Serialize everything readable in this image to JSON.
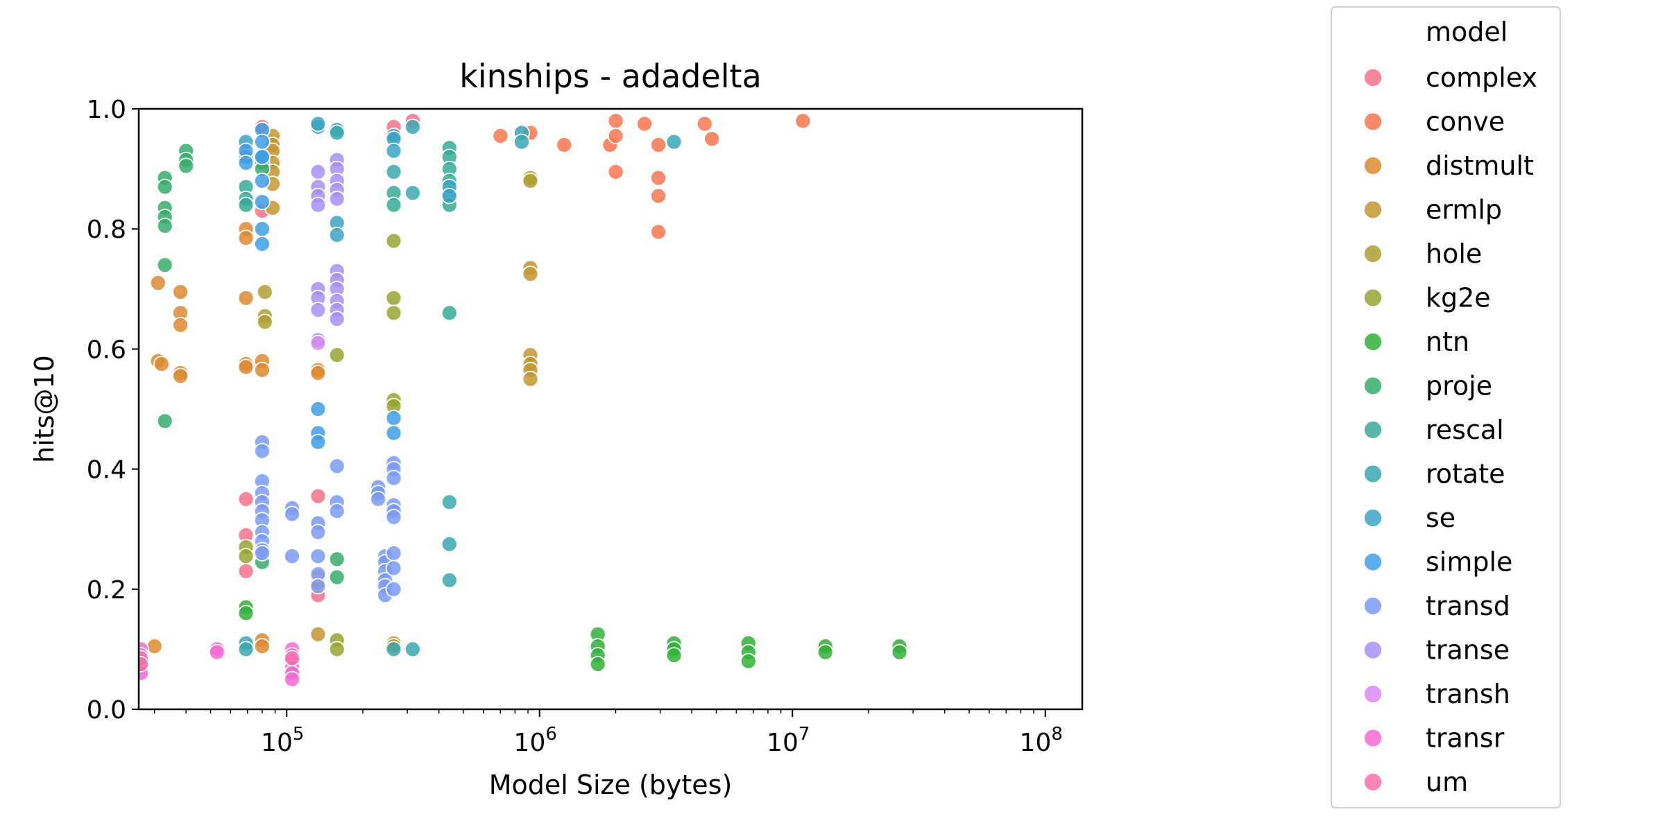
{
  "chart_data": {
    "type": "scatter",
    "title": "kinships - adadelta",
    "xlabel": "Model Size (bytes)",
    "ylabel": "hits@10",
    "x_scale": "log",
    "xlim": [
      26000,
      140000000
    ],
    "ylim": [
      0.0,
      1.0
    ],
    "x_ticks": [
      {
        "value": 100000,
        "base": "10",
        "exp": "5"
      },
      {
        "value": 1000000,
        "base": "10",
        "exp": "6"
      },
      {
        "value": 10000000,
        "base": "10",
        "exp": "7"
      },
      {
        "value": 100000000,
        "base": "10",
        "exp": "8"
      }
    ],
    "y_ticks": [
      "0.0",
      "0.2",
      "0.4",
      "0.6",
      "0.8",
      "1.0"
    ],
    "grid": false,
    "legend": {
      "title": "model",
      "placement": "outside right"
    },
    "series": [
      {
        "name": "complex",
        "color": "#f77189",
        "points": [
          [
            80000,
            0.97
          ],
          [
            80000,
            0.83
          ],
          [
            69000,
            0.35
          ],
          [
            69000,
            0.29
          ],
          [
            69000,
            0.23
          ],
          [
            133000,
            0.355
          ],
          [
            133000,
            0.19
          ],
          [
            265000,
            0.97
          ],
          [
            315000,
            0.98
          ]
        ]
      },
      {
        "name": "conve",
        "color": "#f7754f",
        "points": [
          [
            700000,
            0.955
          ],
          [
            920000,
            0.96
          ],
          [
            1250000,
            0.94
          ],
          [
            1900000,
            0.94
          ],
          [
            2000000,
            0.98
          ],
          [
            2000000,
            0.955
          ],
          [
            2000000,
            0.895
          ],
          [
            2600000,
            0.975
          ],
          [
            2950000,
            0.94
          ],
          [
            2950000,
            0.885
          ],
          [
            2950000,
            0.855
          ],
          [
            2950000,
            0.795
          ],
          [
            4500000,
            0.975
          ],
          [
            4800000,
            0.95
          ],
          [
            11000000,
            0.98
          ]
        ]
      },
      {
        "name": "distmult",
        "color": "#dc8932",
        "points": [
          [
            30000,
            0.105
          ],
          [
            31000,
            0.71
          ],
          [
            31000,
            0.58
          ],
          [
            32000,
            0.575
          ],
          [
            38000,
            0.695
          ],
          [
            38000,
            0.66
          ],
          [
            38000,
            0.64
          ],
          [
            38000,
            0.56
          ],
          [
            38000,
            0.555
          ],
          [
            69000,
            0.8
          ],
          [
            69000,
            0.785
          ],
          [
            69000,
            0.685
          ],
          [
            69000,
            0.575
          ],
          [
            69000,
            0.57
          ],
          [
            80000,
            0.58
          ],
          [
            80000,
            0.565
          ],
          [
            80000,
            0.115
          ],
          [
            80000,
            0.105
          ],
          [
            133000,
            0.565
          ],
          [
            133000,
            0.56
          ],
          [
            133000,
            0.22
          ],
          [
            133000,
            0.21
          ]
        ]
      },
      {
        "name": "ermlp",
        "color": "#c39533",
        "points": [
          [
            88000,
            0.955
          ],
          [
            88000,
            0.94
          ],
          [
            88000,
            0.93
          ],
          [
            88000,
            0.91
          ],
          [
            88000,
            0.895
          ],
          [
            88000,
            0.875
          ],
          [
            88000,
            0.835
          ],
          [
            920000,
            0.735
          ],
          [
            920000,
            0.725
          ],
          [
            920000,
            0.59
          ],
          [
            920000,
            0.575
          ],
          [
            920000,
            0.565
          ],
          [
            920000,
            0.55
          ],
          [
            133000,
            0.125
          ],
          [
            265000,
            0.11
          ]
        ]
      },
      {
        "name": "hole",
        "color": "#ae9d31",
        "points": [
          [
            82000,
            0.695
          ],
          [
            82000,
            0.655
          ],
          [
            82000,
            0.645
          ],
          [
            920000,
            0.885
          ],
          [
            920000,
            0.88
          ],
          [
            265000,
            0.105
          ]
        ]
      },
      {
        "name": "kg2e",
        "color": "#97a431",
        "points": [
          [
            69000,
            0.27
          ],
          [
            69000,
            0.255
          ],
          [
            158000,
            0.59
          ],
          [
            158000,
            0.115
          ],
          [
            158000,
            0.1
          ],
          [
            265000,
            0.78
          ],
          [
            265000,
            0.685
          ],
          [
            265000,
            0.66
          ],
          [
            265000,
            0.515
          ],
          [
            265000,
            0.505
          ]
        ]
      },
      {
        "name": "ntn",
        "color": "#33b039",
        "points": [
          [
            69000,
            0.17
          ],
          [
            69000,
            0.16
          ],
          [
            1700000,
            0.125
          ],
          [
            1700000,
            0.105
          ],
          [
            1700000,
            0.09
          ],
          [
            1700000,
            0.075
          ],
          [
            3400000,
            0.11
          ],
          [
            3400000,
            0.1
          ],
          [
            3400000,
            0.09
          ],
          [
            6700000,
            0.11
          ],
          [
            6700000,
            0.095
          ],
          [
            6700000,
            0.08
          ],
          [
            13500000,
            0.105
          ],
          [
            13500000,
            0.095
          ],
          [
            26500000,
            0.105
          ],
          [
            26500000,
            0.095
          ]
        ]
      },
      {
        "name": "proje",
        "color": "#35ad6b",
        "points": [
          [
            33000,
            0.885
          ],
          [
            33000,
            0.87
          ],
          [
            33000,
            0.835
          ],
          [
            33000,
            0.82
          ],
          [
            33000,
            0.805
          ],
          [
            33000,
            0.74
          ],
          [
            33000,
            0.48
          ],
          [
            40000,
            0.93
          ],
          [
            40000,
            0.915
          ],
          [
            40000,
            0.905
          ],
          [
            80000,
            0.91
          ],
          [
            80000,
            0.9
          ],
          [
            80000,
            0.245
          ],
          [
            158000,
            0.25
          ],
          [
            158000,
            0.22
          ]
        ]
      },
      {
        "name": "rescal",
        "color": "#37aa96",
        "points": [
          [
            69000,
            0.87
          ],
          [
            69000,
            0.85
          ],
          [
            69000,
            0.84
          ],
          [
            80000,
            0.92
          ],
          [
            265000,
            0.86
          ],
          [
            265000,
            0.84
          ],
          [
            440000,
            0.935
          ],
          [
            440000,
            0.92
          ],
          [
            440000,
            0.9
          ],
          [
            440000,
            0.88
          ],
          [
            440000,
            0.86
          ],
          [
            440000,
            0.84
          ],
          [
            440000,
            0.66
          ]
        ]
      },
      {
        "name": "rotate",
        "color": "#39a7b0",
        "points": [
          [
            133000,
            0.97
          ],
          [
            158000,
            0.965
          ],
          [
            158000,
            0.96
          ],
          [
            265000,
            0.895
          ],
          [
            315000,
            0.97
          ],
          [
            315000,
            0.86
          ],
          [
            440000,
            0.345
          ],
          [
            440000,
            0.275
          ],
          [
            440000,
            0.215
          ],
          [
            850000,
            0.96
          ],
          [
            850000,
            0.945
          ],
          [
            3400000,
            0.945
          ],
          [
            69000,
            0.11
          ],
          [
            69000,
            0.1
          ],
          [
            265000,
            0.1
          ],
          [
            315000,
            0.1
          ]
        ]
      },
      {
        "name": "se",
        "color": "#3ba3c4",
        "points": [
          [
            69000,
            0.945
          ],
          [
            69000,
            0.92
          ],
          [
            133000,
            0.975
          ],
          [
            158000,
            0.81
          ],
          [
            158000,
            0.79
          ],
          [
            265000,
            0.955
          ],
          [
            265000,
            0.95
          ],
          [
            265000,
            0.93
          ],
          [
            440000,
            0.87
          ],
          [
            440000,
            0.855
          ]
        ]
      },
      {
        "name": "simple",
        "color": "#3e9ee5",
        "points": [
          [
            69000,
            0.93
          ],
          [
            69000,
            0.91
          ],
          [
            80000,
            0.965
          ],
          [
            80000,
            0.945
          ],
          [
            80000,
            0.92
          ],
          [
            80000,
            0.88
          ],
          [
            80000,
            0.845
          ],
          [
            80000,
            0.8
          ],
          [
            80000,
            0.775
          ],
          [
            133000,
            0.5
          ],
          [
            133000,
            0.46
          ],
          [
            133000,
            0.445
          ],
          [
            265000,
            0.485
          ],
          [
            265000,
            0.46
          ]
        ]
      },
      {
        "name": "transd",
        "color": "#7a9bf5",
        "points": [
          [
            80000,
            0.445
          ],
          [
            80000,
            0.43
          ],
          [
            80000,
            0.38
          ],
          [
            80000,
            0.36
          ],
          [
            80000,
            0.345
          ],
          [
            80000,
            0.33
          ],
          [
            80000,
            0.315
          ],
          [
            80000,
            0.295
          ],
          [
            80000,
            0.28
          ],
          [
            80000,
            0.265
          ],
          [
            80000,
            0.26
          ],
          [
            105000,
            0.335
          ],
          [
            105000,
            0.325
          ],
          [
            105000,
            0.255
          ],
          [
            133000,
            0.31
          ],
          [
            133000,
            0.295
          ],
          [
            133000,
            0.255
          ],
          [
            133000,
            0.225
          ],
          [
            133000,
            0.205
          ],
          [
            158000,
            0.405
          ],
          [
            158000,
            0.345
          ],
          [
            158000,
            0.33
          ],
          [
            230000,
            0.37
          ],
          [
            230000,
            0.36
          ],
          [
            230000,
            0.35
          ],
          [
            245000,
            0.255
          ],
          [
            245000,
            0.245
          ],
          [
            245000,
            0.23
          ],
          [
            245000,
            0.215
          ],
          [
            245000,
            0.205
          ],
          [
            245000,
            0.19
          ],
          [
            265000,
            0.41
          ],
          [
            265000,
            0.4
          ],
          [
            265000,
            0.385
          ],
          [
            265000,
            0.34
          ],
          [
            265000,
            0.33
          ],
          [
            265000,
            0.32
          ],
          [
            265000,
            0.26
          ],
          [
            265000,
            0.235
          ],
          [
            265000,
            0.2
          ]
        ]
      },
      {
        "name": "transe",
        "color": "#a78ff2",
        "points": [
          [
            133000,
            0.895
          ],
          [
            133000,
            0.87
          ],
          [
            133000,
            0.855
          ],
          [
            133000,
            0.84
          ],
          [
            133000,
            0.7
          ],
          [
            133000,
            0.685
          ],
          [
            133000,
            0.665
          ],
          [
            133000,
            0.615
          ],
          [
            158000,
            0.915
          ],
          [
            158000,
            0.9
          ],
          [
            158000,
            0.88
          ],
          [
            158000,
            0.865
          ],
          [
            158000,
            0.85
          ],
          [
            158000,
            0.73
          ],
          [
            158000,
            0.715
          ],
          [
            158000,
            0.7
          ],
          [
            158000,
            0.68
          ],
          [
            158000,
            0.665
          ],
          [
            158000,
            0.65
          ]
        ]
      },
      {
        "name": "transh",
        "color": "#d78af5",
        "points": [
          [
            133000,
            0.61
          ]
        ]
      },
      {
        "name": "transr",
        "color": "#f66bd2",
        "points": [
          [
            26500,
            0.1
          ],
          [
            26500,
            0.09
          ],
          [
            26500,
            0.08
          ],
          [
            26500,
            0.07
          ],
          [
            26500,
            0.06
          ],
          [
            53000,
            0.1
          ],
          [
            53000,
            0.095
          ],
          [
            105000,
            0.1
          ],
          [
            105000,
            0.09
          ],
          [
            105000,
            0.08
          ],
          [
            105000,
            0.07
          ],
          [
            105000,
            0.06
          ],
          [
            105000,
            0.05
          ]
        ]
      },
      {
        "name": "um",
        "color": "#f76fab",
        "points": [
          [
            26500,
            0.085
          ],
          [
            26500,
            0.075
          ],
          [
            105000,
            0.085
          ]
        ]
      }
    ]
  }
}
